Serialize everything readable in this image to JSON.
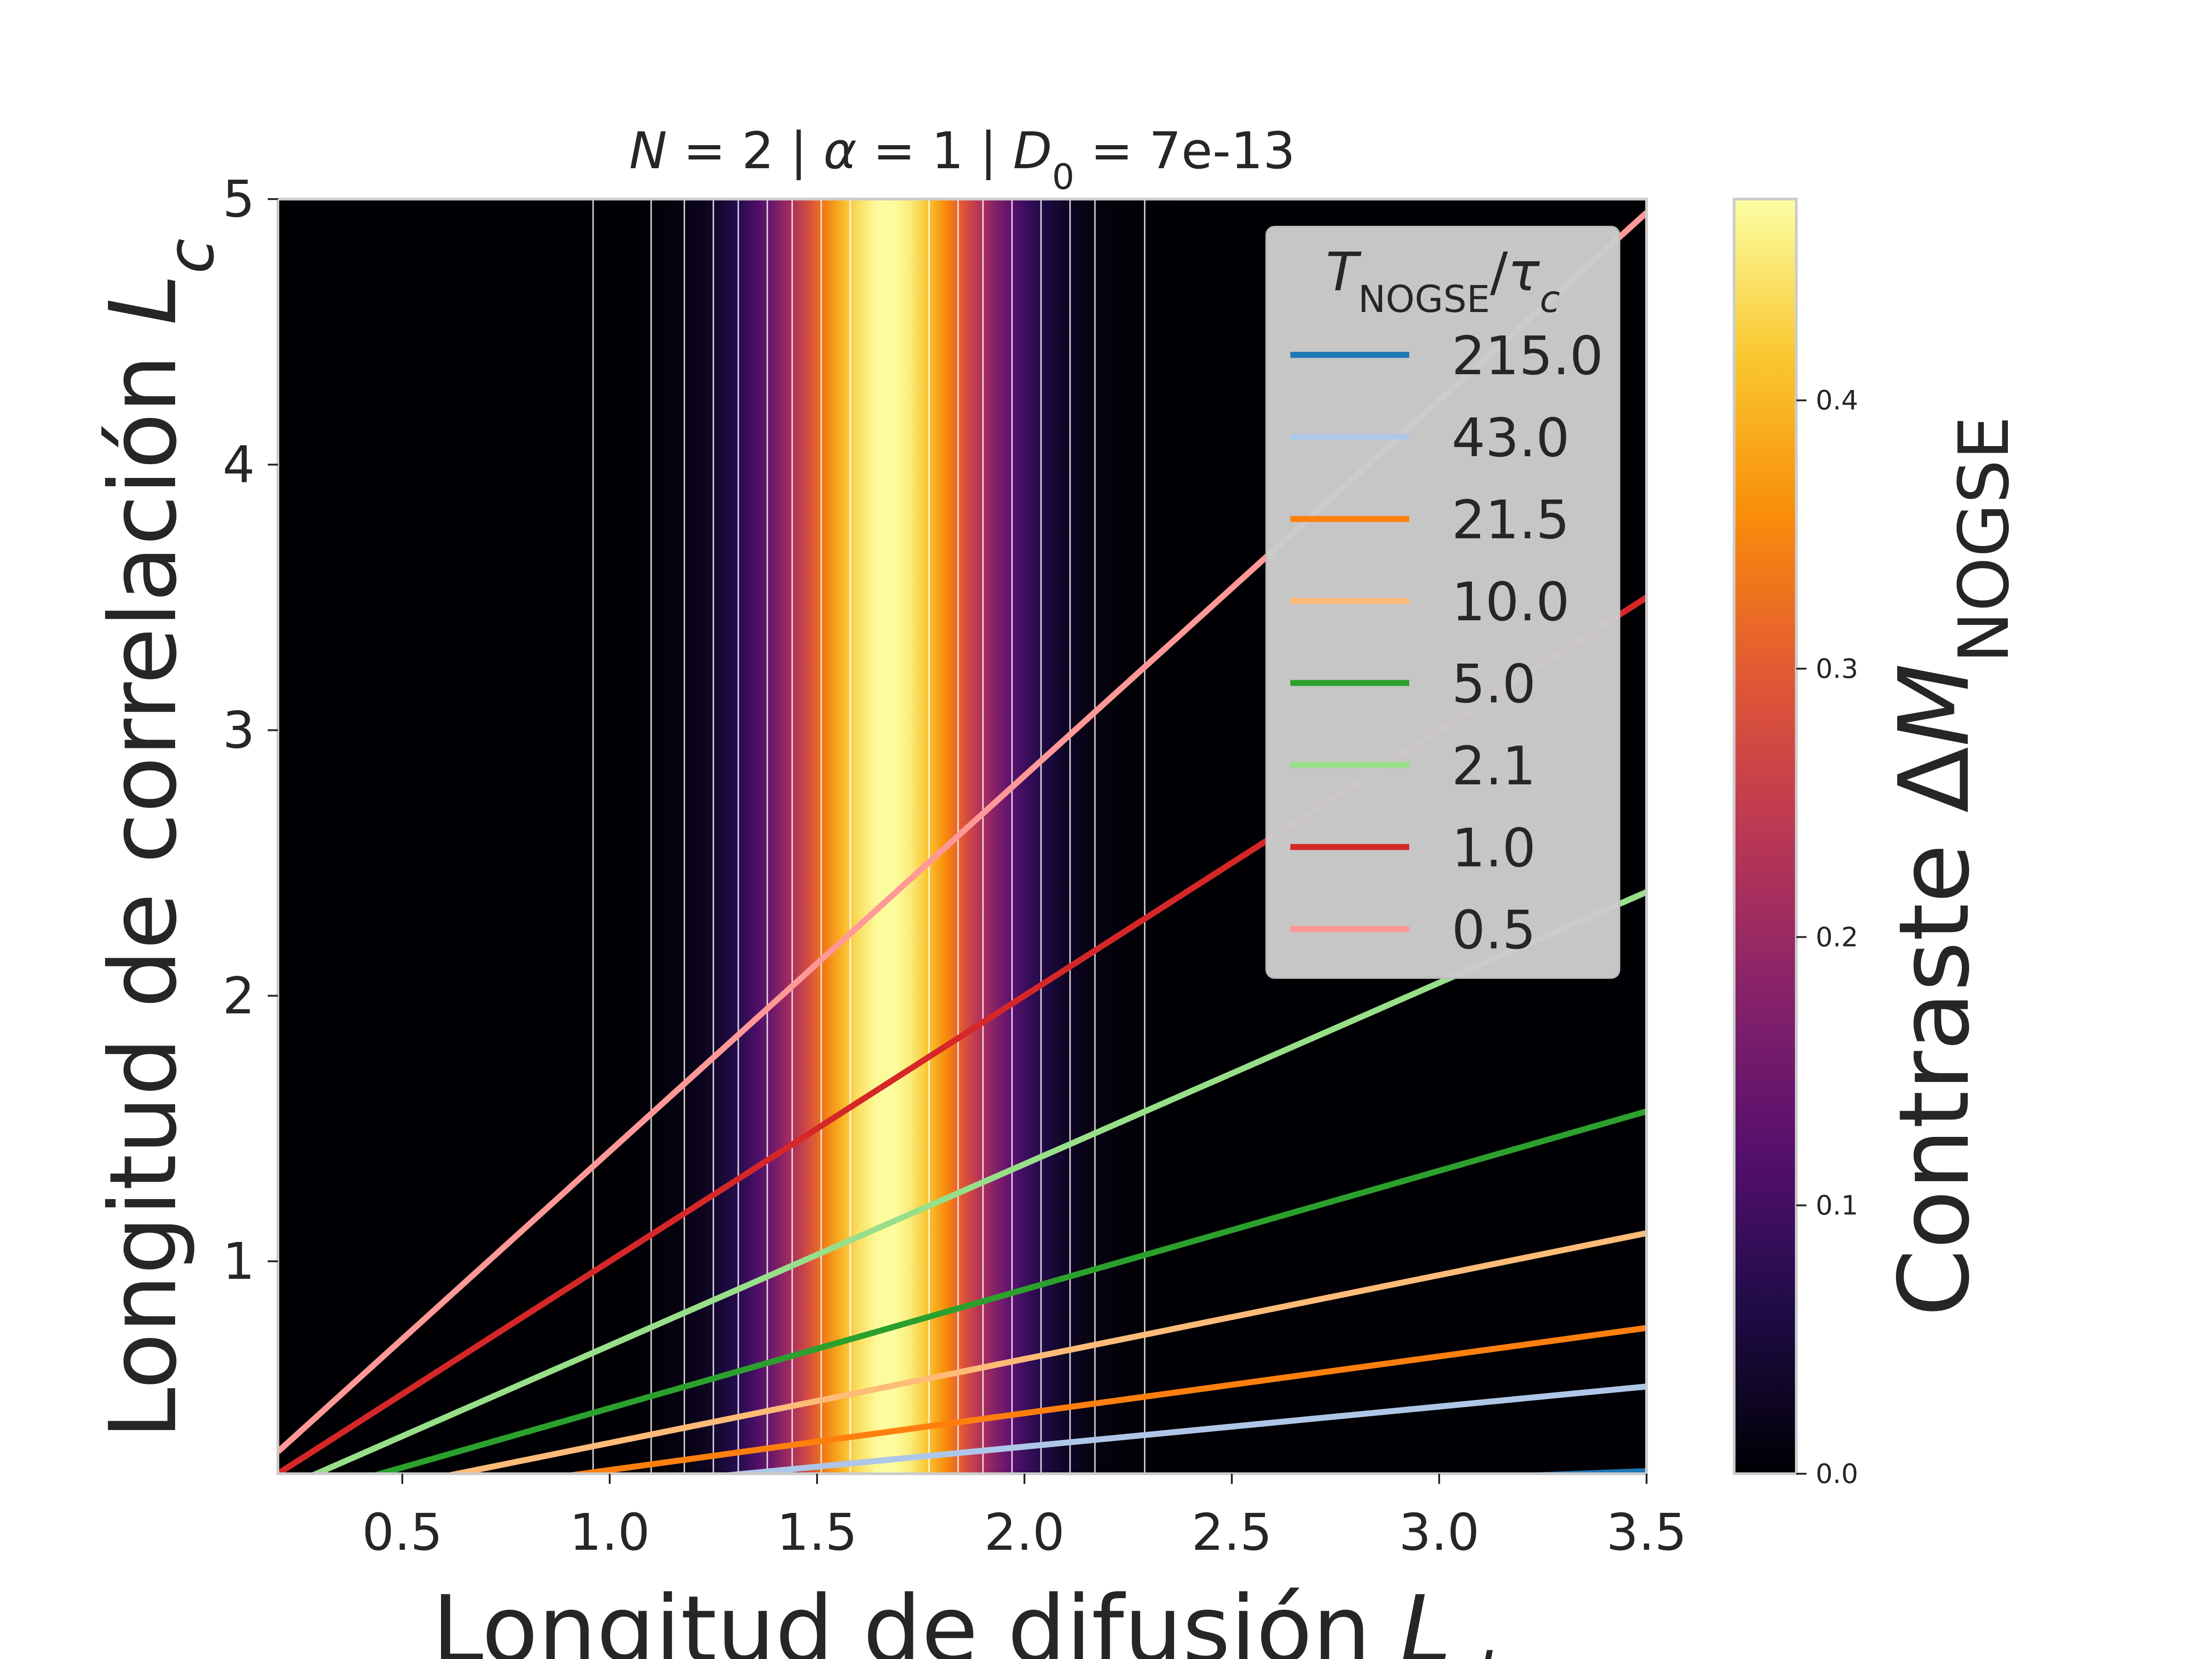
{
  "chart_data": {
    "type": "heatmap",
    "title": {
      "pre": "N",
      "mid1": " = 2 | ",
      "alpha": "α",
      "mid2": " = 1 | ",
      "D": "D",
      "sub": "0",
      "post": " = 7e-13"
    },
    "xlabel": {
      "text": "Longitud de difusión ",
      "var": "L",
      "sub": "d"
    },
    "ylabel": {
      "text": "Longitud de correlación ",
      "var": "L",
      "sub": "c"
    },
    "xlim": [
      0.2,
      3.5
    ],
    "ylim": [
      0.2,
      5.0
    ],
    "xticks": [
      0.5,
      1.0,
      1.5,
      2.0,
      2.5,
      3.0,
      3.5
    ],
    "xtick_labels": [
      "0.5",
      "1.0",
      "1.5",
      "2.0",
      "2.5",
      "3.0",
      "3.5"
    ],
    "yticks": [
      1,
      2,
      3,
      4,
      5
    ],
    "ytick_labels": [
      "1",
      "2",
      "3",
      "4",
      "5"
    ],
    "colormap": "inferno",
    "colorbar": {
      "label": {
        "text": "Contraste ",
        "delta": "Δ",
        "var": "M",
        "sub": "NOGSE"
      },
      "lim": [
        0.0,
        0.475
      ],
      "ticks": [
        0.0,
        0.1,
        0.2,
        0.3,
        0.4
      ],
      "tick_labels": [
        "0.0",
        "0.1",
        "0.2",
        "0.3",
        "0.4"
      ]
    },
    "heatmap": {
      "description_of_values": "contrast depends only on Ld (vertical bands)",
      "peak_x": 1.67,
      "peak_value": 0.475,
      "width": 0.26
    },
    "contour_x": [
      0.96,
      1.1,
      1.18,
      1.25,
      1.31,
      1.38,
      1.44,
      1.51,
      1.58,
      1.77,
      1.84,
      1.9,
      1.97,
      2.04,
      2.11,
      2.17,
      2.29
    ],
    "legend": {
      "title": {
        "var": "T",
        "sub": "NOGSE",
        "slash": "/",
        "tau": "τ",
        "tsub": "c"
      },
      "position": "upper-right"
    },
    "series": [
      {
        "name": "215.0",
        "color": "#1f77b4",
        "slope": 0.06
      },
      {
        "name": "43.0",
        "color": "#aec7e8",
        "slope": 0.151
      },
      {
        "name": "21.5",
        "color": "#ff7f0e",
        "slope": 0.214
      },
      {
        "name": "10.0",
        "color": "#ffbb78",
        "slope": 0.316
      },
      {
        "name": "5.0",
        "color": "#2ca02c",
        "slope": 0.447
      },
      {
        "name": "2.1",
        "color": "#98df8a",
        "slope": 0.683
      },
      {
        "name": "1.0",
        "color": "#d62728",
        "slope": 1.0
      },
      {
        "name": "0.5",
        "color": "#ff9896",
        "slope": 1.414
      }
    ]
  }
}
